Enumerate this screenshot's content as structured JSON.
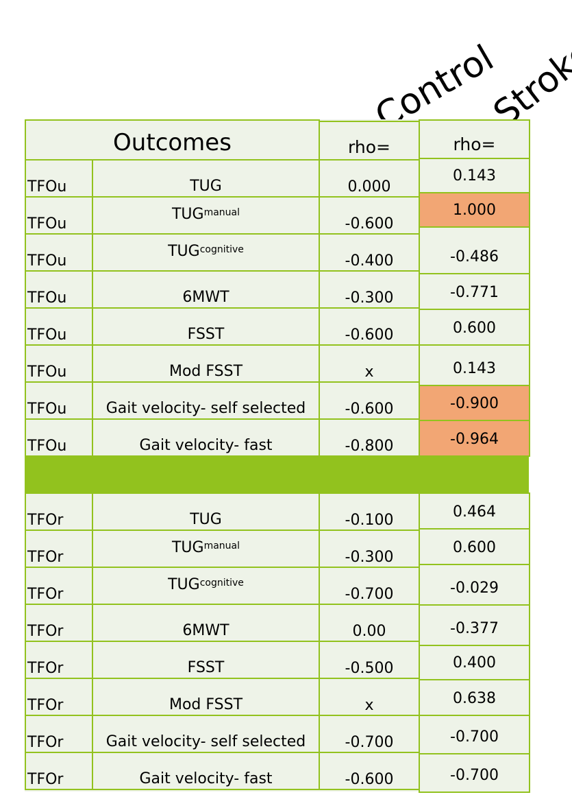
{
  "groups": {
    "control": "Control",
    "stroke": "Stroke"
  },
  "header": {
    "outcomes": "Outcomes",
    "control_rho": "rho=",
    "stroke_rho": "rho="
  },
  "rows": [
    {
      "type": "TFOu",
      "outcome": "TUG",
      "outcome_sub": "",
      "control": "0.000",
      "stroke": "0.143",
      "stroke_highlight": false
    },
    {
      "type": "TFOu",
      "outcome": "TUG",
      "outcome_sub": "manual",
      "control": "-0.600",
      "stroke": "1.000",
      "stroke_highlight": true
    },
    {
      "type": "TFOu",
      "outcome": "TUG",
      "outcome_sub": "cognitive",
      "control": "-0.400",
      "stroke": "-0.486",
      "stroke_highlight": false
    },
    {
      "type": "TFOu",
      "outcome": "6MWT",
      "outcome_sub": "",
      "control": "-0.300",
      "stroke": "-0.771",
      "stroke_highlight": false
    },
    {
      "type": "TFOu",
      "outcome": "FSST",
      "outcome_sub": "",
      "control": "-0.600",
      "stroke": "0.600",
      "stroke_highlight": false
    },
    {
      "type": "TFOu",
      "outcome": "Mod FSST",
      "outcome_sub": "",
      "control": "x",
      "stroke": "0.143",
      "stroke_highlight": false
    },
    {
      "type": "TFOu",
      "outcome": "Gait velocity- self selected",
      "outcome_sub": "",
      "control": "-0.600",
      "stroke": "-0.900",
      "stroke_highlight": true
    },
    {
      "type": "TFOu",
      "outcome": "Gait velocity- fast",
      "outcome_sub": "",
      "control": "-0.800",
      "stroke": "-0.964",
      "stroke_highlight": true
    },
    {
      "type": "TFOr",
      "outcome": "TUG",
      "outcome_sub": "",
      "control": "-0.100",
      "stroke": "0.464",
      "stroke_highlight": false
    },
    {
      "type": "TFOr",
      "outcome": "TUG",
      "outcome_sub": "manual",
      "control": "-0.300",
      "stroke": "0.600",
      "stroke_highlight": false
    },
    {
      "type": "TFOr",
      "outcome": "TUG",
      "outcome_sub": "cognitive",
      "control": "-0.700",
      "stroke": "-0.029",
      "stroke_highlight": false
    },
    {
      "type": "TFOr",
      "outcome": "6MWT",
      "outcome_sub": "",
      "control": "0.00",
      "stroke": "-0.377",
      "stroke_highlight": false
    },
    {
      "type": "TFOr",
      "outcome": "FSST",
      "outcome_sub": "",
      "control": "-0.500",
      "stroke": "0.400",
      "stroke_highlight": false
    },
    {
      "type": "TFOr",
      "outcome": "Mod FSST",
      "outcome_sub": "",
      "control": "x",
      "stroke": "0.638",
      "stroke_highlight": false
    },
    {
      "type": "TFOr",
      "outcome": "Gait velocity- self selected",
      "outcome_sub": "",
      "control": "-0.700",
      "stroke": "-0.700",
      "stroke_highlight": false
    },
    {
      "type": "TFOr",
      "outcome": "Gait velocity- fast",
      "outcome_sub": "",
      "control": "-0.600",
      "stroke": "-0.700",
      "stroke_highlight": false
    }
  ],
  "colors": {
    "grid": "#92c21e",
    "cell": "#eef3e8",
    "highlight": "#f2a674"
  }
}
